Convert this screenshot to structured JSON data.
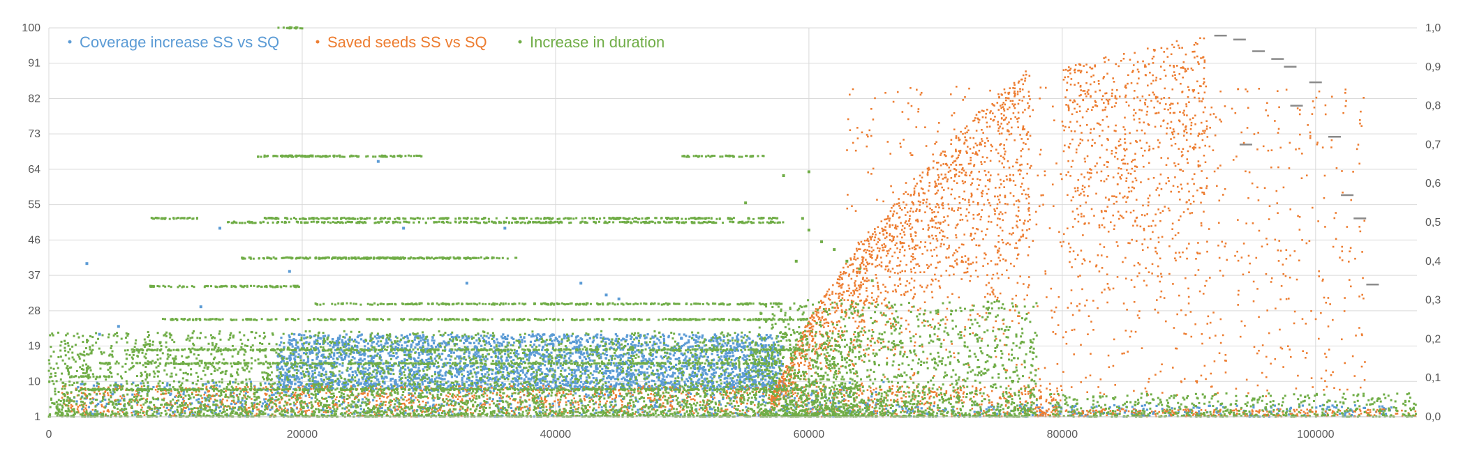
{
  "chart_data": {
    "type": "scatter",
    "title": "",
    "xlabel": "",
    "ylabel": "",
    "xlim": [
      0,
      108000
    ],
    "ylim_left": [
      1,
      100
    ],
    "ylim_right": [
      0.0,
      1.0
    ],
    "x_ticks": [
      "0",
      "20000",
      "40000",
      "60000",
      "80000",
      "100000"
    ],
    "x_tick_values": [
      0,
      20000,
      40000,
      60000,
      80000,
      100000
    ],
    "y_left_ticks": [
      "1",
      "10",
      "19",
      "28",
      "37",
      "46",
      "55",
      "64",
      "73",
      "82",
      "91",
      "100"
    ],
    "y_right_ticks": [
      "0,0",
      "0,1",
      "0,2",
      "0,3",
      "0,4",
      "0,5",
      "0,6",
      "0,7",
      "0,8",
      "0,9",
      "1,0"
    ],
    "grid": true,
    "legend_position": "top-left",
    "series": [
      {
        "name": "Coverage increase SS vs SQ",
        "color": "#5B9BD5",
        "axis": "left",
        "points": [
          [
            3000,
            40
          ],
          [
            4000,
            22
          ],
          [
            5500,
            24
          ],
          [
            7000,
            18
          ],
          [
            12000,
            29
          ],
          [
            13500,
            49
          ],
          [
            19000,
            38
          ],
          [
            28000,
            49
          ],
          [
            33000,
            35
          ],
          [
            36000,
            49
          ],
          [
            42000,
            35
          ],
          [
            44000,
            32
          ],
          [
            45000,
            31
          ],
          [
            26000,
            66
          ]
        ],
        "clusters": [
          {
            "x_range": [
              18000,
              58000
            ],
            "y_range": [
              8,
              22
            ],
            "count": 3000,
            "comment": "dense band"
          },
          {
            "x_range": [
              2000,
              66000
            ],
            "y_range": [
              1,
              10
            ],
            "count": 800
          },
          {
            "x_range": [
              66000,
              106000
            ],
            "y_range": [
              1,
              4
            ],
            "count": 250
          }
        ]
      },
      {
        "name": "Saved seeds SS vs SQ",
        "color": "#ED7D31",
        "axis": "right",
        "bands": [
          [
            57000,
            0.05,
            60000,
            0.25
          ],
          [
            60000,
            0.25,
            63000,
            0.4
          ],
          [
            63000,
            0.4,
            66000,
            0.52
          ],
          [
            66000,
            0.52,
            69000,
            0.63
          ],
          [
            69000,
            0.63,
            72000,
            0.74
          ],
          [
            72000,
            0.74,
            75000,
            0.84
          ],
          [
            75000,
            0.84,
            77500,
            0.9
          ],
          [
            80000,
            0.9,
            84000,
            0.93
          ],
          [
            84000,
            0.93,
            88000,
            0.96
          ],
          [
            88000,
            0.96,
            91500,
            0.98
          ]
        ],
        "step_segments": [
          [
            92000,
            0.98
          ],
          [
            93500,
            0.97
          ],
          [
            95000,
            0.94
          ],
          [
            96500,
            0.92
          ],
          [
            97500,
            0.9
          ],
          [
            98000,
            0.8
          ],
          [
            99500,
            0.86
          ],
          [
            101000,
            0.72
          ],
          [
            102000,
            0.57
          ],
          [
            103000,
            0.51
          ],
          [
            104000,
            0.34
          ],
          [
            94000,
            0.7
          ]
        ],
        "clusters": [
          {
            "x_range": [
              1000,
              80000
            ],
            "y_range": [
              0.0,
              0.08
            ],
            "count": 1500
          },
          {
            "x_range": [
              78000,
              108000
            ],
            "y_range": [
              0.0,
              0.02
            ],
            "count": 300
          },
          {
            "x_range": [
              63000,
              104000
            ],
            "y_range": [
              0.05,
              0.85
            ],
            "count": 900
          }
        ]
      },
      {
        "name": "Increase in duration",
        "color": "#70AD47",
        "axis": "right",
        "stripes": [
          [
            8000,
            0.335,
            20000
          ],
          [
            15000,
            0.408,
            35000
          ],
          [
            19000,
            0.408,
            37000
          ],
          [
            17000,
            0.67,
            23000
          ],
          [
            16500,
            0.67,
            29500
          ],
          [
            8000,
            0.51,
            12000
          ],
          [
            17000,
            0.51,
            58000
          ],
          [
            21000,
            0.29,
            58000
          ],
          [
            9000,
            0.25,
            60000
          ],
          [
            6000,
            0.172,
            60000
          ],
          [
            4000,
            0.137,
            58000
          ],
          [
            1500,
            0.103,
            5000
          ],
          [
            2000,
            0.07,
            60000
          ],
          [
            50000,
            0.67,
            56500
          ],
          [
            18000,
            1.0,
            20000
          ],
          [
            14000,
            0.5,
            58000
          ]
        ],
        "points": [
          [
            59500,
            0.51
          ],
          [
            60000,
            0.48
          ],
          [
            61000,
            0.45
          ],
          [
            62000,
            0.43
          ],
          [
            63000,
            0.4
          ],
          [
            64000,
            0.38
          ],
          [
            65000,
            0.35
          ],
          [
            59000,
            0.4
          ],
          [
            55000,
            0.55
          ],
          [
            58000,
            0.62
          ],
          [
            60000,
            0.63
          ]
        ],
        "clusters": [
          {
            "x_range": [
              0,
              64000
            ],
            "y_range": [
              0.0,
              0.22
            ],
            "count": 4000
          },
          {
            "x_range": [
              56000,
              78000
            ],
            "y_range": [
              0.0,
              0.3
            ],
            "count": 1500
          },
          {
            "x_range": [
              79000,
              108000
            ],
            "y_range": [
              0.0,
              0.06
            ],
            "count": 500
          }
        ]
      }
    ]
  }
}
